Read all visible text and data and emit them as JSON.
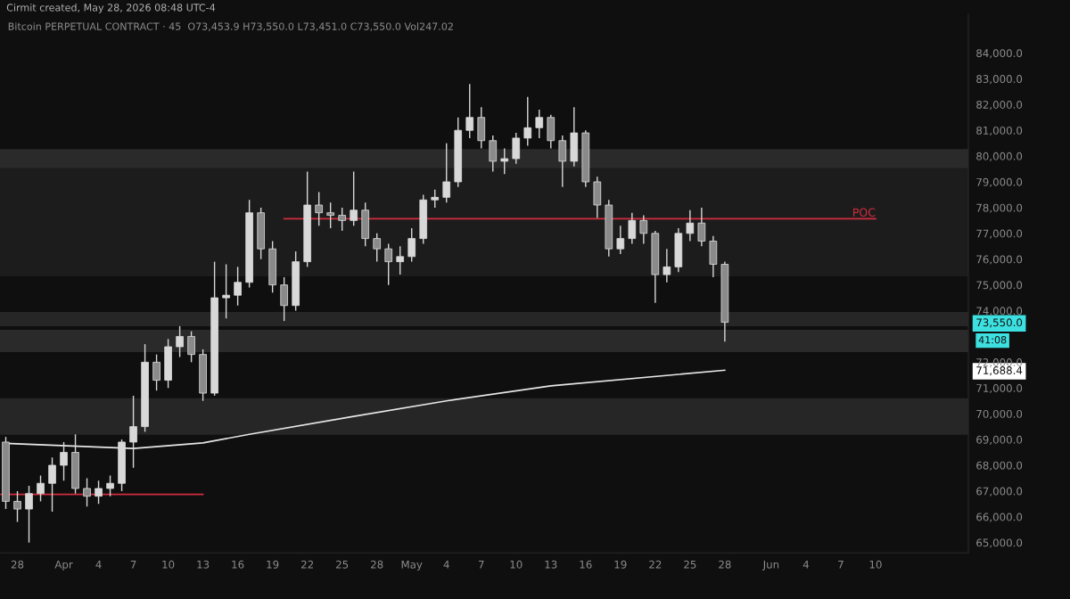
{
  "chart_data": {
    "type": "candlestick",
    "title": "Bitcoin PERPETUAL CONTRACT · 45",
    "subtitle": "O73,453.9 H73,550.0 L73,451.0 C73,550.0 Vol247.02",
    "annotations": [
      "Cirmit created, May 28, 2026 08:48 UTC-4",
      "41:08"
    ],
    "color": "#d8d8d8",
    "x": [
      "2026-03-27",
      "2026-03-28",
      "2026-03-29",
      "2026-03-30",
      "2026-03-31",
      "2026-04-01",
      "2026-04-02",
      "2026-04-03",
      "2026-04-04",
      "2026-04-05",
      "2026-04-06",
      "2026-04-07",
      "2026-04-08",
      "2026-04-09",
      "2026-04-10",
      "2026-04-11",
      "2026-04-12",
      "2026-04-13",
      "2026-04-14",
      "2026-04-15",
      "2026-04-16",
      "2026-04-17",
      "2026-04-18",
      "2026-04-19",
      "2026-04-20",
      "2026-04-21",
      "2026-04-22",
      "2026-04-23",
      "2026-04-24",
      "2026-04-25",
      "2026-04-26",
      "2026-04-27",
      "2026-04-28",
      "2026-04-29",
      "2026-04-30",
      "2026-05-01",
      "2026-05-02",
      "2026-05-03",
      "2026-05-04",
      "2026-05-05",
      "2026-05-06",
      "2026-05-07",
      "2026-05-08",
      "2026-05-09",
      "2026-05-10",
      "2026-05-11",
      "2026-05-12",
      "2026-05-13",
      "2026-05-14",
      "2026-05-15",
      "2026-05-16",
      "2026-05-17",
      "2026-05-18",
      "2026-05-19",
      "2026-05-20",
      "2026-05-21",
      "2026-05-22",
      "2026-05-23",
      "2026-05-24",
      "2026-05-25",
      "2026-05-26",
      "2026-05-27",
      "2026-05-28"
    ],
    "ohlc": [
      [
        68900,
        69100,
        66300,
        66600
      ],
      [
        66600,
        67000,
        65800,
        66300
      ],
      [
        66300,
        67200,
        65000,
        66900
      ],
      [
        66900,
        67600,
        66600,
        67300
      ],
      [
        67300,
        68300,
        66200,
        68000
      ],
      [
        68000,
        68900,
        67400,
        68500
      ],
      [
        68500,
        69200,
        66900,
        67100
      ],
      [
        67100,
        67500,
        66400,
        66800
      ],
      [
        66800,
        67400,
        66500,
        67100
      ],
      [
        67100,
        67600,
        66800,
        67300
      ],
      [
        67300,
        69000,
        67000,
        68900
      ],
      [
        68900,
        70700,
        67900,
        69500
      ],
      [
        69500,
        72700,
        69300,
        72000
      ],
      [
        72000,
        72300,
        70900,
        71300
      ],
      [
        71300,
        72900,
        71000,
        72600
      ],
      [
        72600,
        73400,
        72200,
        73000
      ],
      [
        73000,
        73200,
        72000,
        72300
      ],
      [
        72300,
        72500,
        70500,
        70800
      ],
      [
        70800,
        75900,
        70700,
        74500
      ],
      [
        74500,
        75800,
        73700,
        74600
      ],
      [
        74600,
        75700,
        74200,
        75100
      ],
      [
        75100,
        78300,
        74900,
        77800
      ],
      [
        77800,
        78000,
        76000,
        76400
      ],
      [
        76400,
        76700,
        74700,
        75000
      ],
      [
        75000,
        75300,
        73600,
        74200
      ],
      [
        74200,
        76300,
        74000,
        75900
      ],
      [
        75900,
        79400,
        75700,
        78100
      ],
      [
        78100,
        78600,
        77300,
        77800
      ],
      [
        77800,
        78200,
        77200,
        77700
      ],
      [
        77700,
        78000,
        77100,
        77500
      ],
      [
        77500,
        79400,
        77300,
        77900
      ],
      [
        77900,
        78200,
        76500,
        76800
      ],
      [
        76800,
        77000,
        75900,
        76400
      ],
      [
        76400,
        76600,
        75000,
        75900
      ],
      [
        75900,
        76500,
        75400,
        76100
      ],
      [
        76100,
        77200,
        75900,
        76800
      ],
      [
        76800,
        78500,
        76600,
        78300
      ],
      [
        78300,
        78700,
        78000,
        78400
      ],
      [
        78400,
        80500,
        78200,
        79000
      ],
      [
        79000,
        81500,
        78800,
        81000
      ],
      [
        81000,
        82800,
        80700,
        81500
      ],
      [
        81500,
        81900,
        80300,
        80600
      ],
      [
        80600,
        80800,
        79400,
        79800
      ],
      [
        79800,
        80300,
        79300,
        79900
      ],
      [
        79900,
        80900,
        79700,
        80700
      ],
      [
        80700,
        82300,
        80400,
        81100
      ],
      [
        81100,
        81800,
        80700,
        81500
      ],
      [
        81500,
        81600,
        80300,
        80600
      ],
      [
        80600,
        80800,
        78800,
        79800
      ],
      [
        79800,
        81900,
        79600,
        80900
      ],
      [
        80900,
        81000,
        78800,
        79000
      ],
      [
        79000,
        79200,
        77600,
        78100
      ],
      [
        78100,
        78300,
        76100,
        76400
      ],
      [
        76400,
        77300,
        76200,
        76800
      ],
      [
        76800,
        77800,
        76600,
        77500
      ],
      [
        77500,
        77700,
        76600,
        77000
      ],
      [
        77000,
        77100,
        74300,
        75400
      ],
      [
        75400,
        76400,
        75100,
        75700
      ],
      [
        75700,
        77200,
        75500,
        77000
      ],
      [
        77000,
        77900,
        76700,
        77400
      ],
      [
        77400,
        78000,
        76500,
        76700
      ],
      [
        76700,
        76900,
        75300,
        75800
      ],
      [
        75800,
        75900,
        72800,
        73550
      ]
    ],
    "series": [
      {
        "type": "line",
        "color": "#e6e6e6",
        "x": [
          "2026-03-27",
          "2026-04-07",
          "2026-04-13",
          "2026-04-17",
          "2026-04-26",
          "2026-05-04",
          "2026-05-13",
          "2026-05-28"
        ],
        "values": [
          68850,
          68650,
          68870,
          69200,
          69900,
          70500,
          71080,
          71688.4
        ]
      },
      {
        "type": "line",
        "color": "#d12c3f",
        "x": [
          "2026-03-26T14:00",
          "2026-04-13"
        ],
        "values": [
          66870,
          66870
        ]
      },
      {
        "type": "line",
        "name": "POC",
        "color": "#d12c3f",
        "x": [
          "2026-04-20",
          "2026-06-10"
        ],
        "values": [
          77570,
          77570
        ]
      }
    ],
    "bands": [
      {
        "axis": "y",
        "from": 75330,
        "to": 79920,
        "color": "#1c1c1c"
      },
      {
        "axis": "y",
        "from": 79540,
        "to": 80270,
        "color": "#2a2a2a"
      },
      {
        "axis": "y",
        "from": 73400,
        "to": 73950,
        "color": "#262626"
      },
      {
        "axis": "y",
        "from": 72390,
        "to": 73260,
        "color": "#2a2a2a"
      },
      {
        "axis": "y",
        "from": 69180,
        "to": 70600,
        "color": "#262626"
      }
    ],
    "xlim": [
      "2026-03-26T12:00",
      "2026-06-18"
    ],
    "xticks": [
      {
        "value": "2026-03-28",
        "label": "28"
      },
      {
        "value": "2026-04-01",
        "label": "Apr"
      },
      {
        "value": "2026-04-04",
        "label": "4"
      },
      {
        "value": "2026-04-07",
        "label": "7"
      },
      {
        "value": "2026-04-10",
        "label": "10"
      },
      {
        "value": "2026-04-13",
        "label": "13"
      },
      {
        "value": "2026-04-16",
        "label": "16"
      },
      {
        "value": "2026-04-19",
        "label": "19"
      },
      {
        "value": "2026-04-22",
        "label": "22"
      },
      {
        "value": "2026-04-25",
        "label": "25"
      },
      {
        "value": "2026-04-28",
        "label": "28"
      },
      {
        "value": "2026-05-01",
        "label": "May"
      },
      {
        "value": "2026-05-04",
        "label": "4"
      },
      {
        "value": "2026-05-07",
        "label": "7"
      },
      {
        "value": "2026-05-10",
        "label": "10"
      },
      {
        "value": "2026-05-13",
        "label": "13"
      },
      {
        "value": "2026-05-16",
        "label": "16"
      },
      {
        "value": "2026-05-19",
        "label": "19"
      },
      {
        "value": "2026-05-22",
        "label": "22"
      },
      {
        "value": "2026-05-25",
        "label": "25"
      },
      {
        "value": "2026-05-28",
        "label": "28"
      },
      {
        "value": "2026-06-01",
        "label": "Jun"
      },
      {
        "value": "2026-06-04",
        "label": "4"
      },
      {
        "value": "2026-06-07",
        "label": "7"
      },
      {
        "value": "2026-06-10",
        "label": "10"
      }
    ],
    "ylim": [
      64600,
      85500
    ],
    "yticks": [
      {
        "value": 65000,
        "label": "65,000.0"
      },
      {
        "value": 66000,
        "label": "66,000.0"
      },
      {
        "value": 67000,
        "label": "67,000.0"
      },
      {
        "value": 68000,
        "label": "68,000.0"
      },
      {
        "value": 69000,
        "label": "69,000.0"
      },
      {
        "value": 70000,
        "label": "70,000.0"
      },
      {
        "value": 71000,
        "label": "71,000.0"
      },
      {
        "value": 71688.4,
        "label": "71,688.4"
      },
      {
        "value": 72000,
        "label": "72,000.0"
      },
      {
        "value": 73550,
        "label": "73,550.0"
      },
      {
        "value": 74000,
        "label": "74,000.0"
      },
      {
        "value": 75000,
        "label": "75,000.0"
      },
      {
        "value": 76000,
        "label": "76,000.0"
      },
      {
        "value": 77000,
        "label": "77,000.0"
      },
      {
        "value": 78000,
        "label": "78,000.0"
      },
      {
        "value": 79000,
        "label": "79,000.0"
      },
      {
        "value": 80000,
        "label": "80,000.0"
      },
      {
        "value": 81000,
        "label": "81,000.0"
      },
      {
        "value": 82000,
        "label": "82,000.0"
      },
      {
        "value": 83000,
        "label": "83,000.0"
      },
      {
        "value": 84000,
        "label": "84,000.0"
      }
    ]
  }
}
